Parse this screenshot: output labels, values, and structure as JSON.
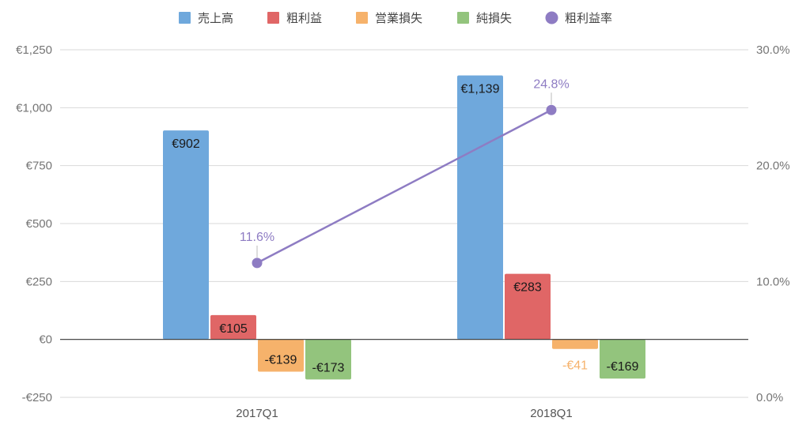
{
  "chart_data": {
    "type": "bar",
    "categories": [
      "2017Q1",
      "2018Q1"
    ],
    "series": [
      {
        "name": "売上高",
        "values": [
          902,
          1139
        ],
        "labels": [
          "€902",
          "€1,139"
        ],
        "color": "#6fa8dc"
      },
      {
        "name": "粗利益",
        "values": [
          105,
          283
        ],
        "labels": [
          "€105",
          "€283"
        ],
        "color": "#e06666"
      },
      {
        "name": "営業損失",
        "values": [
          -139,
          -41
        ],
        "labels": [
          "-€139",
          "-€41"
        ],
        "color": "#f6b26b"
      },
      {
        "name": "純損失",
        "values": [
          -173,
          -169
        ],
        "labels": [
          "-€173",
          "-€169"
        ],
        "color": "#93c47d"
      }
    ],
    "line_series": {
      "name": "粗利益率",
      "values": [
        11.6,
        24.8
      ],
      "labels": [
        "11.6%",
        "24.8%"
      ],
      "color": "#8e7cc3",
      "axis": "right"
    },
    "y_left": {
      "range": [
        -250,
        1250
      ],
      "ticks": [
        -250,
        0,
        250,
        500,
        750,
        1000,
        1250
      ],
      "tick_labels": [
        "-€250",
        "€0",
        "€250",
        "€500",
        "€750",
        "€1,000",
        "€1,250"
      ]
    },
    "y_right": {
      "range": [
        0,
        30
      ],
      "ticks": [
        0,
        10,
        20,
        30
      ],
      "tick_labels": [
        "0.0%",
        "10.0%",
        "20.0%",
        "30.0%"
      ]
    },
    "title": "",
    "xlabel": "",
    "ylabel": "",
    "grid": true,
    "legend": "top"
  }
}
